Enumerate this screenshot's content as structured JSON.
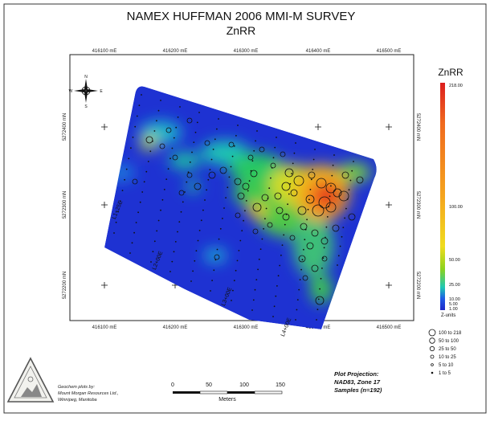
{
  "title": "NAMEX HUFFMAN 2006 MMI-M SURVEY",
  "subtitle": "ZnRR",
  "easting_labels": [
    "416100 mE",
    "416200 mE",
    "416300 mE",
    "416400 mE",
    "416500 mE"
  ],
  "northing_labels": [
    "5272400 mN",
    "5272300 mN",
    "5272200 mN"
  ],
  "north_arrow": {
    "n": "N",
    "s": "S",
    "e": "E",
    "w": "W"
  },
  "line_labels": [
    "L1+25E",
    "L2+00E",
    "L3+00E",
    "L4+00E"
  ],
  "colorbar": {
    "title": "ZnRR",
    "tick_labels": [
      "218.00",
      "100.00",
      "50.00",
      "25.00",
      "10.00",
      "5.00",
      "1.00"
    ],
    "units": "Z-units",
    "colors": [
      "#dc1e1e",
      "#f06a1e",
      "#f5a51e",
      "#f0dc1e",
      "#8cd21e",
      "#1ec8b4",
      "#1e5ae6",
      "#1e28c8"
    ]
  },
  "size_legend": [
    "100 to 218",
    "50 to 100",
    "25 to 50",
    "10 to 25",
    "5 to 10",
    "1 to 5"
  ],
  "credit": [
    "Geochem plots by:",
    "Mount Morgan Resources Ltd.,",
    "Winnipeg, Manitoba"
  ],
  "scale_bar": {
    "ticks": [
      "0",
      "50",
      "100",
      "150"
    ],
    "unit": "Meters"
  },
  "projection": [
    "Plot Projection:",
    "NAD83, Zone 17",
    "Samples (n=192)"
  ]
}
